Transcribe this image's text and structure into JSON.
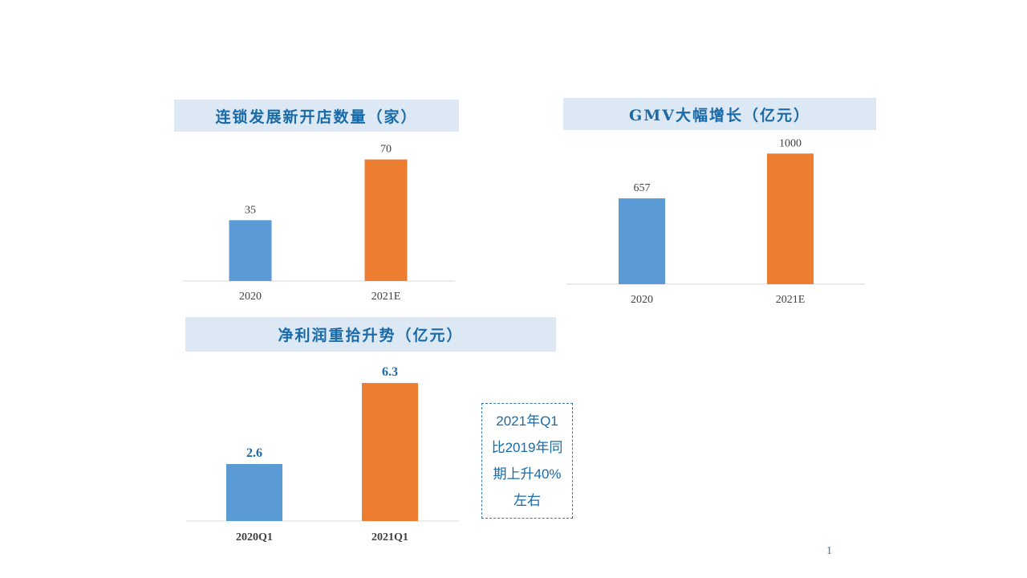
{
  "colors": {
    "blue": "#5b9bd5",
    "orange": "#ed7d31",
    "title_bg": "#dce8f4",
    "title_text": "#1a6aa8",
    "axis": "#d9d9d9"
  },
  "chart_data": [
    {
      "type": "bar",
      "title": "连锁发展新开店数量（家）",
      "categories": [
        "2020",
        "2021E"
      ],
      "values": [
        35,
        70
      ],
      "value_labels": [
        "35",
        "70"
      ],
      "bar_colors": [
        "#5b9bd5",
        "#ed7d31"
      ],
      "ylim": [
        0,
        80
      ],
      "grid": false,
      "legend": "none"
    },
    {
      "type": "bar",
      "title": "GMV大幅增长（亿元）",
      "categories": [
        "2020",
        "2021E"
      ],
      "values": [
        657,
        1000
      ],
      "value_labels": [
        "657",
        "1000"
      ],
      "bar_colors": [
        "#5b9bd5",
        "#ed7d31"
      ],
      "ylim": [
        0,
        1100
      ],
      "grid": false,
      "legend": "none"
    },
    {
      "type": "bar",
      "title": "净利润重拾升势（亿元）",
      "categories": [
        "2020Q1",
        "2021Q1"
      ],
      "values": [
        2.6,
        6.3
      ],
      "value_labels": [
        "2.6",
        "6.3"
      ],
      "bar_colors": [
        "#5b9bd5",
        "#ed7d31"
      ],
      "ylim": [
        0,
        7
      ],
      "grid": false,
      "legend": "none"
    }
  ],
  "note": {
    "lines": [
      "2021年Q1",
      "比2019年同",
      "期上升40%",
      "左右"
    ]
  },
  "page_number": "1"
}
